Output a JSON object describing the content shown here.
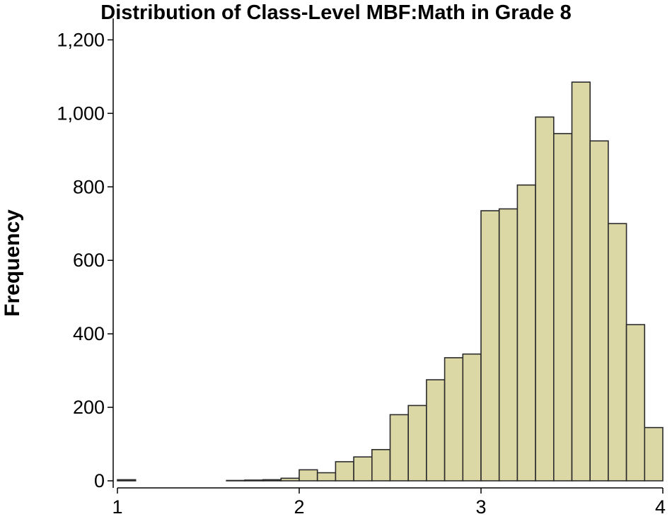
{
  "chart_data": {
    "type": "bar",
    "title": "Distribution of Class-Level MBF:Math in Grade 8",
    "xlabel": "",
    "ylabel": "Frequency",
    "xlim": [
      1,
      4
    ],
    "ylim": [
      0,
      1270
    ],
    "x_ticks": [
      1,
      2,
      3,
      4
    ],
    "x_tick_labels": [
      "1",
      "2",
      "3",
      "4"
    ],
    "y_ticks": [
      0,
      200,
      400,
      600,
      800,
      1000,
      1200
    ],
    "y_tick_labels": [
      "0",
      "200",
      "400",
      "600",
      "800",
      "1,000",
      "1,200"
    ],
    "bin_width": 0.1,
    "bins": [
      {
        "x0": 1.0,
        "x1": 1.1,
        "value": 3
      },
      {
        "x0": 1.1,
        "x1": 1.2,
        "value": 0
      },
      {
        "x0": 1.2,
        "x1": 1.3,
        "value": 0
      },
      {
        "x0": 1.3,
        "x1": 1.4,
        "value": 0
      },
      {
        "x0": 1.4,
        "x1": 1.5,
        "value": 0
      },
      {
        "x0": 1.5,
        "x1": 1.6,
        "value": 0
      },
      {
        "x0": 1.6,
        "x1": 1.7,
        "value": 1
      },
      {
        "x0": 1.7,
        "x1": 1.8,
        "value": 2
      },
      {
        "x0": 1.8,
        "x1": 1.9,
        "value": 3
      },
      {
        "x0": 1.9,
        "x1": 2.0,
        "value": 7
      },
      {
        "x0": 2.0,
        "x1": 2.1,
        "value": 30
      },
      {
        "x0": 2.1,
        "x1": 2.2,
        "value": 22
      },
      {
        "x0": 2.2,
        "x1": 2.3,
        "value": 52
      },
      {
        "x0": 2.3,
        "x1": 2.4,
        "value": 65
      },
      {
        "x0": 2.4,
        "x1": 2.5,
        "value": 85
      },
      {
        "x0": 2.5,
        "x1": 2.6,
        "value": 180
      },
      {
        "x0": 2.6,
        "x1": 2.7,
        "value": 205
      },
      {
        "x0": 2.7,
        "x1": 2.8,
        "value": 275
      },
      {
        "x0": 2.8,
        "x1": 2.9,
        "value": 335
      },
      {
        "x0": 2.9,
        "x1": 3.0,
        "value": 345
      },
      {
        "x0": 3.0,
        "x1": 3.1,
        "value": 735
      },
      {
        "x0": 3.1,
        "x1": 3.2,
        "value": 740
      },
      {
        "x0": 3.2,
        "x1": 3.3,
        "value": 805
      },
      {
        "x0": 3.3,
        "x1": 3.4,
        "value": 990
      },
      {
        "x0": 3.4,
        "x1": 3.5,
        "value": 945
      },
      {
        "x0": 3.5,
        "x1": 3.6,
        "value": 1085
      },
      {
        "x0": 3.6,
        "x1": 3.7,
        "value": 925
      },
      {
        "x0": 3.7,
        "x1": 3.8,
        "value": 700
      },
      {
        "x0": 3.8,
        "x1": 3.9,
        "value": 425
      },
      {
        "x0": 3.9,
        "x1": 4.0,
        "value": 145
      }
    ],
    "bar_fill": "#DCD8A6",
    "bar_stroke": "#2B2B2B",
    "grid": false,
    "legend": false
  }
}
